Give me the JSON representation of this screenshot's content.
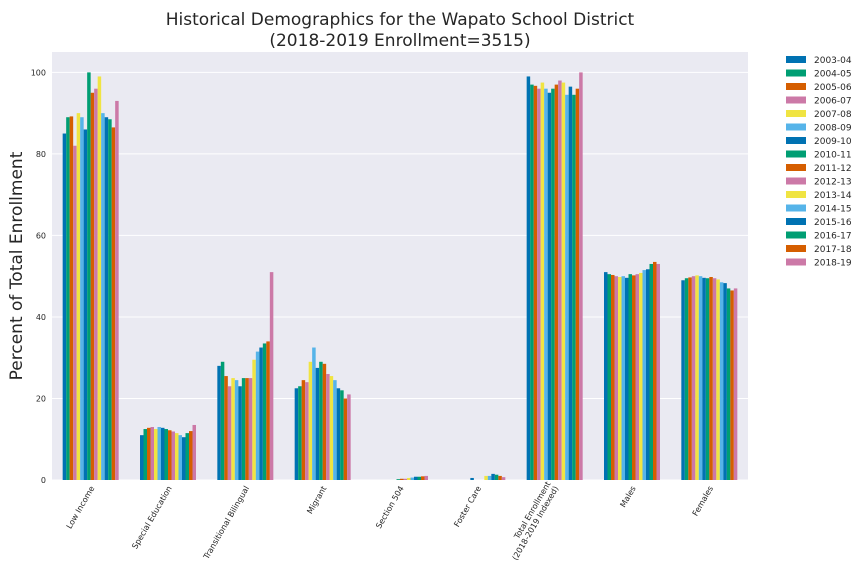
{
  "chart_data": {
    "type": "bar",
    "title": "Historical Demographics for the Wapato School District",
    "subtitle": "(2018-2019 Enrollment=3515)",
    "xlabel": "",
    "ylabel": "Percent of Total Enrollment",
    "ylim": [
      0,
      105
    ],
    "yticks": [
      0,
      20,
      40,
      60,
      80,
      100
    ],
    "grid": true,
    "legend_position": "outside-right",
    "categories": [
      "Low Income",
      "Special Education",
      "Transitional Bilingual",
      "Migrant",
      "Section 504",
      "Foster Care",
      "Total Enrollment\n(2018-2019 Indexed)",
      "Males",
      "Females"
    ],
    "colors": [
      "#0072B2",
      "#009E73",
      "#D55E00",
      "#CC79A7",
      "#F0E442",
      "#56B4E9",
      "#0072B2",
      "#009E73",
      "#D55E00",
      "#CC79A7",
      "#F0E442",
      "#56B4E9",
      "#0072B2",
      "#009E73",
      "#D55E00",
      "#CC79A7"
    ],
    "series": [
      {
        "name": "2003-04",
        "values": [
          85,
          11,
          28,
          22.5,
          0,
          0,
          99,
          51,
          49
        ]
      },
      {
        "name": "2004-05",
        "values": [
          89,
          12.5,
          29,
          23,
          0,
          0,
          97,
          50.5,
          49.5
        ]
      },
      {
        "name": "2005-06",
        "values": [
          89.2,
          12.8,
          25.5,
          24.5,
          0,
          0,
          96.7,
          50.3,
          49.7
        ]
      },
      {
        "name": "2006-07",
        "values": [
          82,
          13,
          23,
          24,
          0,
          0,
          96,
          50,
          50
        ]
      },
      {
        "name": "2007-08",
        "values": [
          90,
          12.5,
          25,
          29,
          0,
          0,
          97.5,
          49.8,
          50.2
        ]
      },
      {
        "name": "2008-09",
        "values": [
          89,
          13,
          24.5,
          32.5,
          0,
          0,
          96,
          50,
          50
        ]
      },
      {
        "name": "2009-10",
        "values": [
          86,
          12.8,
          23,
          27.5,
          0,
          0.5,
          95,
          49.6,
          49.6
        ]
      },
      {
        "name": "2010-11",
        "values": [
          100,
          12.5,
          25,
          29,
          0.2,
          0,
          96,
          50.5,
          49.5
        ]
      },
      {
        "name": "2011-12",
        "values": [
          95,
          12.2,
          25,
          28.5,
          0.3,
          0,
          97,
          50.2,
          49.8
        ]
      },
      {
        "name": "2012-13",
        "values": [
          96,
          11.9,
          25,
          26,
          0.3,
          0,
          98,
          50.5,
          49.5
        ]
      },
      {
        "name": "2013-14",
        "values": [
          99,
          11.5,
          29.5,
          25.5,
          0.5,
          1,
          97.5,
          50.8,
          49.2
        ]
      },
      {
        "name": "2014-15",
        "values": [
          90,
          11,
          31.5,
          24.5,
          0.6,
          1,
          94.5,
          51.5,
          48.5
        ]
      },
      {
        "name": "2015-16",
        "values": [
          89,
          10.5,
          32.5,
          22.5,
          0.8,
          1.5,
          96.5,
          51.7,
          48.3
        ]
      },
      {
        "name": "2016-17",
        "values": [
          88.5,
          11.5,
          33.5,
          22,
          0.8,
          1.3,
          94.5,
          53,
          47
        ]
      },
      {
        "name": "2017-18",
        "values": [
          86.5,
          12,
          34,
          20,
          0.9,
          1,
          96,
          53.5,
          46.5
        ]
      },
      {
        "name": "2018-19",
        "values": [
          93,
          13.5,
          51,
          21,
          1,
          0.7,
          100,
          53,
          47
        ]
      }
    ]
  }
}
